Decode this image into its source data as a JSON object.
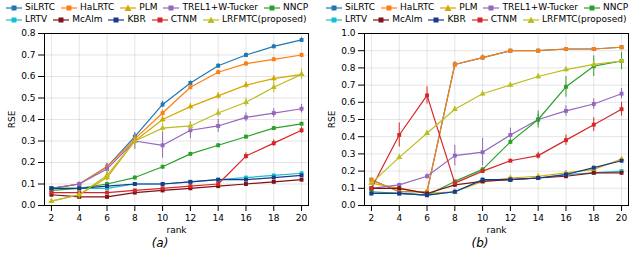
{
  "chart_data": [
    {
      "type": "line",
      "title": "(a)",
      "xlabel": "rank",
      "ylabel": "RSE",
      "x": [
        2,
        4,
        6,
        8,
        10,
        12,
        14,
        16,
        18,
        20
      ],
      "xlim": [
        1.5,
        20.5
      ],
      "xticks": [
        2,
        4,
        6,
        8,
        10,
        12,
        14,
        16,
        18,
        20
      ],
      "ylim": [
        0,
        0.8
      ],
      "yticks": [
        {
          "value": 0,
          "label": "0.0"
        },
        0.1,
        0.2,
        0.3,
        0.4,
        0.5,
        0.6,
        0.7,
        0.8
      ],
      "grid": true,
      "legend": "upper left",
      "series": [
        {
          "name": "SiLRTC",
          "color": "#1f77b4",
          "marker": "square",
          "values": [
            0.08,
            0.1,
            0.18,
            0.32,
            0.47,
            0.57,
            0.65,
            0.7,
            0.74,
            0.77
          ],
          "yerr": [
            0.005,
            0.005,
            0.015,
            0.015,
            0.015,
            0.01,
            0.01,
            0.01,
            0.01,
            0.01
          ]
        },
        {
          "name": "HaLRTC",
          "color": "#ff7f0e",
          "marker": "square",
          "values": [
            0.08,
            0.1,
            0.18,
            0.31,
            0.43,
            0.55,
            0.62,
            0.66,
            0.68,
            0.7
          ],
          "yerr": [
            0.005,
            0.005,
            0.015,
            0.015,
            0.015,
            0.01,
            0.01,
            0.01,
            0.01,
            0.01
          ]
        },
        {
          "name": "PLM",
          "color": "#d4a800",
          "marker": "triangle",
          "values": [
            0.02,
            0.05,
            0.13,
            0.3,
            0.4,
            0.46,
            0.51,
            0.56,
            0.59,
            0.61
          ],
          "yerr": [
            0.005,
            0.01,
            0.015,
            0.015,
            0.015,
            0.015,
            0.015,
            0.015,
            0.015,
            0.015
          ]
        },
        {
          "name": "TREL1+W-Tucker",
          "color": "#9467bd",
          "marker": "square",
          "values": [
            0.08,
            0.1,
            0.17,
            0.3,
            0.28,
            0.35,
            0.37,
            0.41,
            0.43,
            0.45
          ],
          "yerr": [
            0.005,
            0.01,
            0.025,
            0.04,
            0.06,
            0.04,
            0.03,
            0.02,
            0.02,
            0.02
          ]
        },
        {
          "name": "NNCP",
          "color": "#2ca02c",
          "marker": "square",
          "values": [
            0.07,
            0.08,
            0.1,
            0.13,
            0.18,
            0.24,
            0.28,
            0.32,
            0.36,
            0.38
          ],
          "yerr": [
            0.005,
            0.005,
            0.008,
            0.008,
            0.008,
            0.008,
            0.008,
            0.008,
            0.008,
            0.008
          ]
        },
        {
          "name": "LRTV",
          "color": "#17becf",
          "marker": "square",
          "values": [
            0.08,
            0.08,
            0.08,
            0.1,
            0.1,
            0.11,
            0.12,
            0.13,
            0.14,
            0.15
          ],
          "yerr": [
            0.004,
            0.004,
            0.004,
            0.004,
            0.004,
            0.004,
            0.004,
            0.004,
            0.004,
            0.004
          ]
        },
        {
          "name": "McAlm",
          "color": "#7f1216",
          "marker": "square",
          "values": [
            0.05,
            0.04,
            0.04,
            0.06,
            0.07,
            0.08,
            0.09,
            0.1,
            0.11,
            0.12
          ],
          "yerr": [
            0.004,
            0.004,
            0.004,
            0.004,
            0.004,
            0.004,
            0.004,
            0.004,
            0.004,
            0.004
          ]
        },
        {
          "name": "KBR",
          "color": "#1a3a8a",
          "marker": "square",
          "values": [
            0.08,
            0.08,
            0.09,
            0.1,
            0.1,
            0.11,
            0.12,
            0.12,
            0.13,
            0.14
          ],
          "yerr": [
            0.004,
            0.004,
            0.004,
            0.004,
            0.004,
            0.004,
            0.004,
            0.004,
            0.004,
            0.004
          ]
        },
        {
          "name": "CTNM",
          "color": "#d62728",
          "marker": "square",
          "values": [
            0.06,
            0.06,
            0.06,
            0.07,
            0.08,
            0.09,
            0.1,
            0.23,
            0.29,
            0.35
          ],
          "yerr": [
            0.004,
            0.004,
            0.004,
            0.004,
            0.004,
            0.008,
            0.01,
            0.015,
            0.015,
            0.015
          ]
        },
        {
          "name": "LRFMTC(proposed)",
          "color": "#bcbd22",
          "marker": "triangle",
          "values": [
            0.02,
            0.05,
            0.14,
            0.3,
            0.36,
            0.37,
            0.43,
            0.48,
            0.55,
            0.61
          ],
          "yerr": [
            0.005,
            0.02,
            0.025,
            0.025,
            0.02,
            0.02,
            0.02,
            0.02,
            0.025,
            0.025
          ]
        }
      ]
    },
    {
      "type": "line",
      "title": "(b)",
      "xlabel": "rank",
      "ylabel": "RSE",
      "x": [
        2,
        4,
        6,
        8,
        10,
        12,
        14,
        16,
        18,
        20
      ],
      "xlim": [
        1.5,
        20.5
      ],
      "xticks": [
        2,
        4,
        6,
        8,
        10,
        12,
        14,
        16,
        18,
        20
      ],
      "ylim": [
        0,
        1.0
      ],
      "yticks": [
        {
          "value": 0,
          "label": "0.0"
        },
        0.1,
        0.2,
        0.3,
        0.4,
        0.5,
        0.6,
        0.7,
        0.8,
        0.9,
        {
          "value": 1,
          "label": "1.0"
        }
      ],
      "grid": true,
      "legend": "upper left",
      "series": [
        {
          "name": "SiLRTC",
          "color": "#1f77b4",
          "marker": "square",
          "values": [
            0.15,
            0.08,
            0.08,
            0.82,
            0.86,
            0.9,
            0.9,
            0.91,
            0.91,
            0.92
          ],
          "yerr": [
            0.008,
            0.008,
            0.008,
            0.015,
            0.015,
            0.008,
            0.008,
            0.008,
            0.008,
            0.008
          ]
        },
        {
          "name": "HaLRTC",
          "color": "#ff7f0e",
          "marker": "square",
          "values": [
            0.15,
            0.08,
            0.08,
            0.82,
            0.86,
            0.9,
            0.9,
            0.91,
            0.91,
            0.92
          ],
          "yerr": [
            0.008,
            0.008,
            0.008,
            0.015,
            0.015,
            0.008,
            0.008,
            0.008,
            0.008,
            0.008
          ]
        },
        {
          "name": "PLM",
          "color": "#d4a800",
          "marker": "triangle",
          "values": [
            0.13,
            0.1,
            0.07,
            0.08,
            0.14,
            0.16,
            0.17,
            0.19,
            0.21,
            0.27
          ],
          "yerr": [
            0.008,
            0.008,
            0.008,
            0.008,
            0.008,
            0.008,
            0.008,
            0.008,
            0.008,
            0.008
          ]
        },
        {
          "name": "TREL1+W-Tucker",
          "color": "#9467bd",
          "marker": "square",
          "values": [
            0.1,
            0.12,
            0.17,
            0.29,
            0.31,
            0.41,
            0.5,
            0.55,
            0.59,
            0.65
          ],
          "yerr": [
            0.008,
            0.008,
            0.015,
            0.06,
            0.08,
            0.04,
            0.03,
            0.03,
            0.03,
            0.03
          ]
        },
        {
          "name": "NNCP",
          "color": "#2ca02c",
          "marker": "square",
          "values": [
            0.08,
            0.07,
            0.06,
            0.14,
            0.21,
            0.37,
            0.5,
            0.69,
            0.81,
            0.84
          ],
          "yerr": [
            0.008,
            0.008,
            0.008,
            0.008,
            0.01,
            0.015,
            0.05,
            0.06,
            0.06,
            0.05
          ]
        },
        {
          "name": "LRTV",
          "color": "#17becf",
          "marker": "square",
          "values": [
            0.07,
            0.07,
            0.06,
            0.08,
            0.15,
            0.15,
            0.16,
            0.18,
            0.19,
            0.2
          ],
          "yerr": [
            0.008,
            0.008,
            0.008,
            0.008,
            0.008,
            0.008,
            0.008,
            0.008,
            0.008,
            0.008
          ]
        },
        {
          "name": "McAlm",
          "color": "#7f1216",
          "marker": "square",
          "values": [
            0.1,
            0.1,
            0.07,
            0.12,
            0.14,
            0.15,
            0.16,
            0.17,
            0.19,
            0.19
          ],
          "yerr": [
            0.008,
            0.008,
            0.008,
            0.008,
            0.008,
            0.008,
            0.008,
            0.008,
            0.008,
            0.008
          ]
        },
        {
          "name": "KBR",
          "color": "#1a3a8a",
          "marker": "square",
          "values": [
            0.07,
            0.07,
            0.06,
            0.08,
            0.15,
            0.15,
            0.16,
            0.18,
            0.22,
            0.26
          ],
          "yerr": [
            0.008,
            0.008,
            0.008,
            0.008,
            0.008,
            0.008,
            0.008,
            0.008,
            0.008,
            0.008
          ]
        },
        {
          "name": "CTNM",
          "color": "#d62728",
          "marker": "square",
          "values": [
            0.1,
            0.41,
            0.64,
            0.13,
            0.2,
            0.26,
            0.29,
            0.38,
            0.47,
            0.56
          ],
          "yerr": [
            0.008,
            0.07,
            0.05,
            0.008,
            0.01,
            0.01,
            0.02,
            0.03,
            0.04,
            0.04
          ]
        },
        {
          "name": "LRFMTC(proposed)",
          "color": "#bcbd22",
          "marker": "triangle",
          "values": [
            0.13,
            0.28,
            0.42,
            0.56,
            0.65,
            0.7,
            0.75,
            0.79,
            0.82,
            0.84
          ],
          "yerr": [
            0.008,
            0.015,
            0.015,
            0.015,
            0.015,
            0.015,
            0.015,
            0.015,
            0.015,
            0.015
          ]
        }
      ]
    }
  ]
}
